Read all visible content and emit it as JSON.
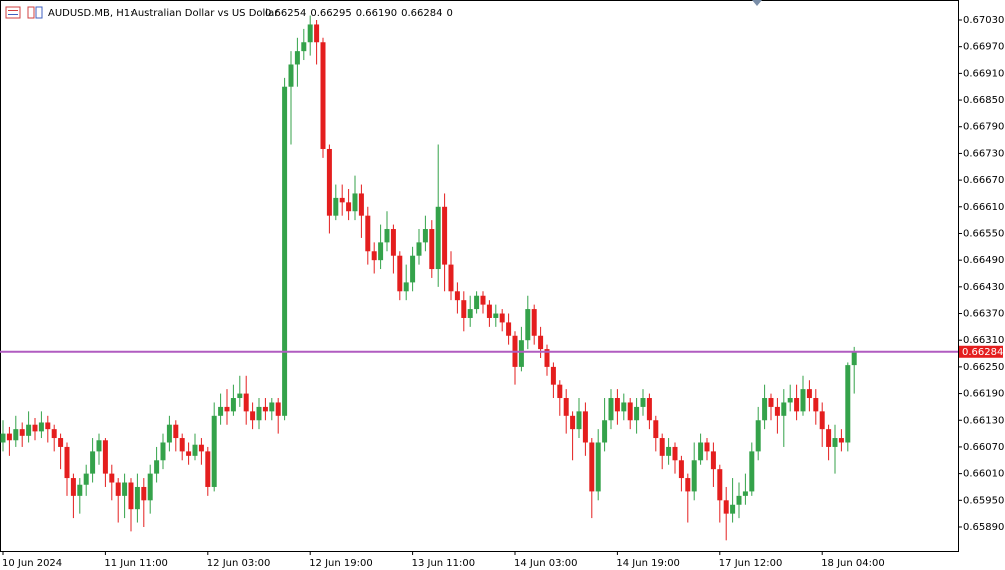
{
  "header": {
    "symbol": "AUDUSD.MB, H1:",
    "description": "Australian Dollar vs US Dollar",
    "quote": [
      "0.66254",
      "0.66295",
      "0.66190",
      "0.66284",
      "0"
    ]
  },
  "chart_data": {
    "type": "candlestick",
    "categories": [
      "10 Jun 2024",
      null,
      null,
      null,
      null,
      null,
      null,
      null,
      null,
      null,
      null,
      null,
      null,
      null,
      null,
      null,
      "11 Jun 11:00",
      null,
      null,
      null,
      null,
      null,
      null,
      null,
      null,
      null,
      null,
      null,
      null,
      null,
      null,
      null,
      "12 Jun 03:00",
      null,
      null,
      null,
      null,
      null,
      null,
      null,
      null,
      null,
      null,
      null,
      null,
      null,
      null,
      null,
      "12 Jun 19:00",
      null,
      null,
      null,
      null,
      null,
      null,
      null,
      null,
      null,
      null,
      null,
      null,
      null,
      null,
      null,
      "13 Jun 11:00",
      null,
      null,
      null,
      null,
      null,
      null,
      null,
      null,
      null,
      null,
      null,
      null,
      null,
      null,
      null,
      "14 Jun 03:00",
      null,
      null,
      null,
      null,
      null,
      null,
      null,
      null,
      null,
      null,
      null,
      null,
      null,
      null,
      null,
      "14 Jun 19:00",
      null,
      null,
      null,
      null,
      null,
      null,
      null,
      null,
      null,
      null,
      null,
      null,
      null,
      null,
      null,
      "17 Jun 12:00",
      null,
      null,
      null,
      null,
      null,
      null,
      null,
      null,
      null,
      null,
      null,
      null,
      null,
      null,
      null,
      "18 Jun 04:00",
      null,
      null,
      null,
      null,
      null
    ],
    "open": [
      0.6608,
      0.661,
      0.66085,
      0.6611,
      0.66095,
      0.6612,
      0.66105,
      0.66125,
      0.6611,
      0.6609,
      0.6607,
      0.66,
      0.6596,
      0.65985,
      0.6601,
      0.6606,
      0.66085,
      0.6601,
      0.6599,
      0.6596,
      0.6599,
      0.6593,
      0.6598,
      0.6595,
      0.6601,
      0.6604,
      0.6608,
      0.6612,
      0.6609,
      0.6606,
      0.6605,
      0.66075,
      0.6606,
      0.6598,
      0.6614,
      0.6616,
      0.6615,
      0.6618,
      0.6619,
      0.6615,
      0.6613,
      0.6616,
      0.6615,
      0.6617,
      0.6614,
      0.6688,
      0.6693,
      0.6696,
      0.6698,
      0.6702,
      0.6698,
      0.6674,
      0.6659,
      0.6663,
      0.6662,
      0.666,
      0.6664,
      0.6659,
      0.6651,
      0.6649,
      0.6653,
      0.6656,
      0.665,
      0.6642,
      0.6644,
      0.665,
      0.6653,
      0.6656,
      0.6647,
      0.6661,
      0.6648,
      0.6642,
      0.664,
      0.6636,
      0.6638,
      0.6641,
      0.6639,
      0.6636,
      0.6637,
      0.6635,
      0.6632,
      0.6625,
      0.6631,
      0.6638,
      0.6632,
      0.6629,
      0.6625,
      0.6621,
      0.6618,
      0.6614,
      0.6611,
      0.6615,
      0.6608,
      0.6597,
      0.6608,
      0.6613,
      0.6618,
      0.6615,
      0.6617,
      0.6613,
      0.6616,
      0.6618,
      0.6613,
      0.6609,
      0.6605,
      0.6607,
      0.6604,
      0.66,
      0.6597,
      0.6604,
      0.6608,
      0.6606,
      0.6602,
      0.6595,
      0.6592,
      0.6594,
      0.6596,
      0.6597,
      0.6606,
      0.6613,
      0.6618,
      0.6616,
      0.6614,
      0.6617,
      0.6618,
      0.6615,
      0.662,
      0.6618,
      0.6615,
      0.6611,
      0.6607,
      0.6609,
      0.6608,
      0.66254
    ],
    "high": [
      0.6613,
      0.66115,
      0.6614,
      0.66125,
      0.6615,
      0.66135,
      0.6615,
      0.6614,
      0.6612,
      0.661,
      0.6608,
      0.6601,
      0.66,
      0.6603,
      0.6609,
      0.661,
      0.6609,
      0.6603,
      0.66,
      0.6601,
      0.66,
      0.6601,
      0.66,
      0.6603,
      0.6607,
      0.661,
      0.6614,
      0.6613,
      0.661,
      0.6608,
      0.661,
      0.6609,
      0.6607,
      0.6617,
      0.6619,
      0.662,
      0.6621,
      0.6623,
      0.6623,
      0.6617,
      0.6618,
      0.6618,
      0.6618,
      0.6618,
      0.669,
      0.6696,
      0.6699,
      0.6701,
      0.6704,
      0.6703,
      0.6699,
      0.6675,
      0.6666,
      0.6666,
      0.6665,
      0.6668,
      0.6666,
      0.6661,
      0.6653,
      0.6657,
      0.666,
      0.6657,
      0.6651,
      0.6648,
      0.6652,
      0.6656,
      0.6659,
      0.6658,
      0.6675,
      0.6664,
      0.6651,
      0.6644,
      0.6642,
      0.6641,
      0.6642,
      0.6642,
      0.664,
      0.6639,
      0.6638,
      0.6637,
      0.6633,
      0.6634,
      0.6641,
      0.6639,
      0.6634,
      0.663,
      0.6626,
      0.6622,
      0.662,
      0.6615,
      0.6618,
      0.6617,
      0.6609,
      0.6611,
      0.6618,
      0.662,
      0.662,
      0.6619,
      0.6618,
      0.6618,
      0.662,
      0.6619,
      0.6614,
      0.661,
      0.6609,
      0.6608,
      0.6605,
      0.6601,
      0.6608,
      0.661,
      0.6609,
      0.6608,
      0.6603,
      0.6598,
      0.66,
      0.6599,
      0.6601,
      0.6608,
      0.6616,
      0.6621,
      0.6619,
      0.6618,
      0.662,
      0.6621,
      0.6621,
      0.6623,
      0.6622,
      0.662,
      0.6617,
      0.6612,
      0.6612,
      0.6611,
      0.6626,
      0.66295
    ],
    "low": [
      0.6606,
      0.6605,
      0.6607,
      0.6607,
      0.6608,
      0.66085,
      0.6609,
      0.6608,
      0.6606,
      0.6602,
      0.6596,
      0.6591,
      0.6592,
      0.6596,
      0.6599,
      0.6603,
      0.6598,
      0.6595,
      0.659,
      0.6591,
      0.6588,
      0.659,
      0.6589,
      0.6592,
      0.6599,
      0.6602,
      0.6606,
      0.6606,
      0.6604,
      0.6603,
      0.6604,
      0.6603,
      0.6596,
      0.6597,
      0.6612,
      0.6612,
      0.6614,
      0.6616,
      0.6612,
      0.6611,
      0.6611,
      0.6613,
      0.6613,
      0.661,
      0.6613,
      0.6675,
      0.6688,
      0.6694,
      0.6695,
      0.6693,
      0.6672,
      0.6655,
      0.6658,
      0.6659,
      0.6658,
      0.6658,
      0.6654,
      0.6648,
      0.6646,
      0.6647,
      0.6651,
      0.6646,
      0.664,
      0.664,
      0.6642,
      0.6648,
      0.6651,
      0.6645,
      0.6643,
      0.6642,
      0.664,
      0.6637,
      0.6633,
      0.6634,
      0.6637,
      0.6637,
      0.6634,
      0.6634,
      0.6633,
      0.663,
      0.6621,
      0.6624,
      0.6629,
      0.663,
      0.6627,
      0.6623,
      0.6618,
      0.6614,
      0.661,
      0.6604,
      0.6609,
      0.6605,
      0.6591,
      0.6595,
      0.6606,
      0.6611,
      0.6612,
      0.6613,
      0.6611,
      0.661,
      0.6614,
      0.6611,
      0.6606,
      0.6602,
      0.6603,
      0.6601,
      0.6597,
      0.659,
      0.6595,
      0.6603,
      0.6604,
      0.6598,
      0.659,
      0.6586,
      0.659,
      0.6591,
      0.6594,
      0.6596,
      0.6604,
      0.6611,
      0.6613,
      0.661,
      0.6607,
      0.6615,
      0.6613,
      0.6614,
      0.6615,
      0.6612,
      0.6607,
      0.6604,
      0.6601,
      0.6606,
      0.6606,
      0.6619
    ],
    "close": [
      0.661,
      0.66085,
      0.6611,
      0.66095,
      0.6612,
      0.66105,
      0.66125,
      0.6611,
      0.6609,
      0.6607,
      0.66,
      0.6596,
      0.65985,
      0.6601,
      0.6606,
      0.66085,
      0.6601,
      0.6599,
      0.6596,
      0.6599,
      0.6593,
      0.6598,
      0.6595,
      0.6601,
      0.6604,
      0.6608,
      0.6612,
      0.6609,
      0.6606,
      0.6605,
      0.66075,
      0.6606,
      0.6598,
      0.6614,
      0.6616,
      0.6615,
      0.6618,
      0.6619,
      0.6615,
      0.6613,
      0.6616,
      0.6615,
      0.6617,
      0.6614,
      0.6688,
      0.6693,
      0.6696,
      0.6698,
      0.6702,
      0.6698,
      0.6674,
      0.6659,
      0.6663,
      0.6662,
      0.666,
      0.6664,
      0.6659,
      0.6651,
      0.6649,
      0.6653,
      0.6656,
      0.665,
      0.6642,
      0.6644,
      0.665,
      0.6653,
      0.6656,
      0.6647,
      0.6661,
      0.6648,
      0.6642,
      0.664,
      0.6636,
      0.6638,
      0.6641,
      0.6639,
      0.6636,
      0.6637,
      0.6635,
      0.6632,
      0.6625,
      0.6631,
      0.6638,
      0.6632,
      0.6629,
      0.6625,
      0.6621,
      0.6618,
      0.6614,
      0.6611,
      0.6615,
      0.6608,
      0.6597,
      0.6608,
      0.6613,
      0.6618,
      0.6615,
      0.6617,
      0.6613,
      0.6616,
      0.6618,
      0.6613,
      0.6609,
      0.6605,
      0.6607,
      0.6604,
      0.66,
      0.6597,
      0.6604,
      0.6608,
      0.6606,
      0.6602,
      0.6595,
      0.6592,
      0.6594,
      0.6596,
      0.6597,
      0.6606,
      0.6613,
      0.6618,
      0.6616,
      0.6614,
      0.6617,
      0.6618,
      0.6615,
      0.662,
      0.6618,
      0.6615,
      0.6611,
      0.6607,
      0.6609,
      0.6608,
      0.66254,
      0.66284
    ],
    "up_color": "#34a24a",
    "down_color": "#e41e1e",
    "price_line_color": "#b05cc0",
    "price_tag_color": "#e41e1e",
    "price_label": "0.66284",
    "ylim": [
      0.65836,
      0.67075
    ],
    "yticks": [
      {
        "value": 0.6703,
        "label": "0.67030"
      },
      {
        "value": 0.6697,
        "label": "0.66970"
      },
      {
        "value": 0.6691,
        "label": "0.66910"
      },
      {
        "value": 0.6685,
        "label": "0.66850"
      },
      {
        "value": 0.6679,
        "label": "0.66790"
      },
      {
        "value": 0.6673,
        "label": "0.66730"
      },
      {
        "value": 0.6667,
        "label": "0.66670"
      },
      {
        "value": 0.6661,
        "label": "0.66610"
      },
      {
        "value": 0.6655,
        "label": "0.66550"
      },
      {
        "value": 0.6649,
        "label": "0.66490"
      },
      {
        "value": 0.6643,
        "label": "0.66430"
      },
      {
        "value": 0.6637,
        "label": "0.66370"
      },
      {
        "value": 0.6631,
        "label": "0.66310"
      },
      {
        "value": 0.6625,
        "label": "0.66250"
      },
      {
        "value": 0.6619,
        "label": "0.66190"
      },
      {
        "value": 0.6613,
        "label": "0.66130"
      },
      {
        "value": 0.6607,
        "label": "0.66070"
      },
      {
        "value": 0.6601,
        "label": "0.66010"
      },
      {
        "value": 0.6595,
        "label": "0.65950"
      },
      {
        "value": 0.6589,
        "label": "0.65890"
      }
    ]
  }
}
